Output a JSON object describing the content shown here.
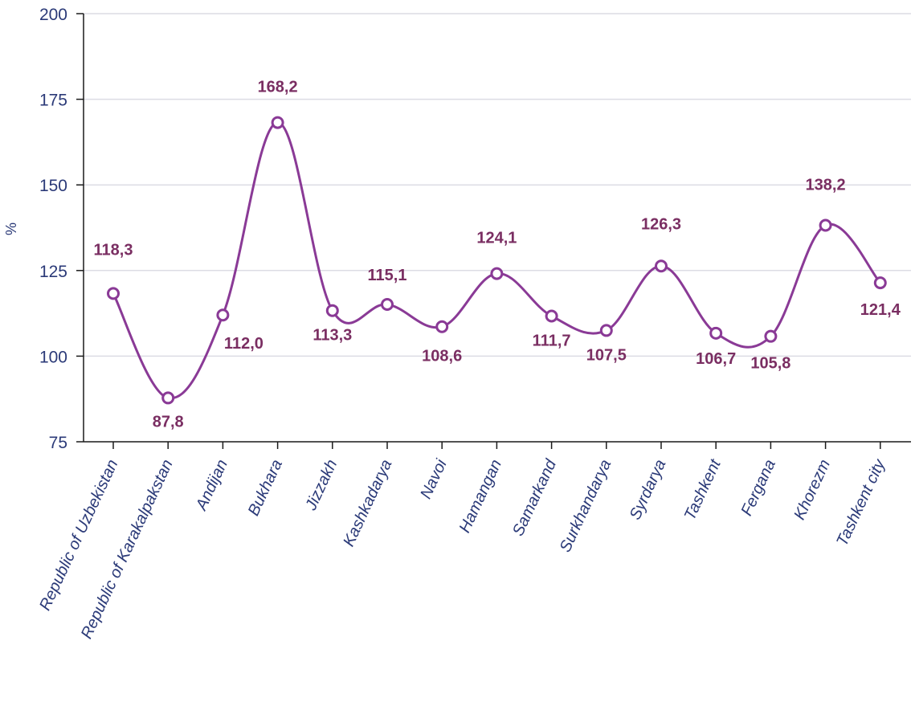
{
  "chart_data": {
    "type": "line",
    "title": "",
    "xlabel": "",
    "ylabel": "%",
    "ylim": [
      75,
      200
    ],
    "yticks": [
      75,
      100,
      125,
      150,
      175,
      200
    ],
    "grid": true,
    "legend": "none",
    "categories": [
      "Republic of Uzbekistan",
      "Republic of Karakalpakstan",
      "Andijan",
      "Bukhara",
      "Jizzakh",
      "Kashkadarya",
      "Navoi",
      "Hamangan",
      "Samarkand",
      "Surkhandarya",
      "Syrdarya",
      "Tashkent",
      "Fergana",
      "Khorezm",
      "Tashkent city"
    ],
    "series": [
      {
        "values": [
          118.3,
          87.8,
          112.0,
          168.2,
          113.3,
          115.1,
          108.6,
          124.1,
          111.7,
          107.5,
          126.3,
          106.7,
          105.8,
          138.2,
          121.4
        ],
        "data_labels": [
          "118,3",
          "87,8",
          "112,0",
          "168,2",
          "113,3",
          "115,1",
          "108,6",
          "124,1",
          "111,7",
          "107,5",
          "126,3",
          "106,7",
          "105,8",
          "138,2",
          "121,4"
        ],
        "color": "#8a3a96"
      }
    ],
    "colors": {
      "line": "#8a3a96",
      "marker_fill": "#ffffff",
      "data_label": "#7a2e62",
      "axis_text": "#2b3a78",
      "grid": "#dcdce4",
      "axis": "#1a1a1a"
    }
  }
}
